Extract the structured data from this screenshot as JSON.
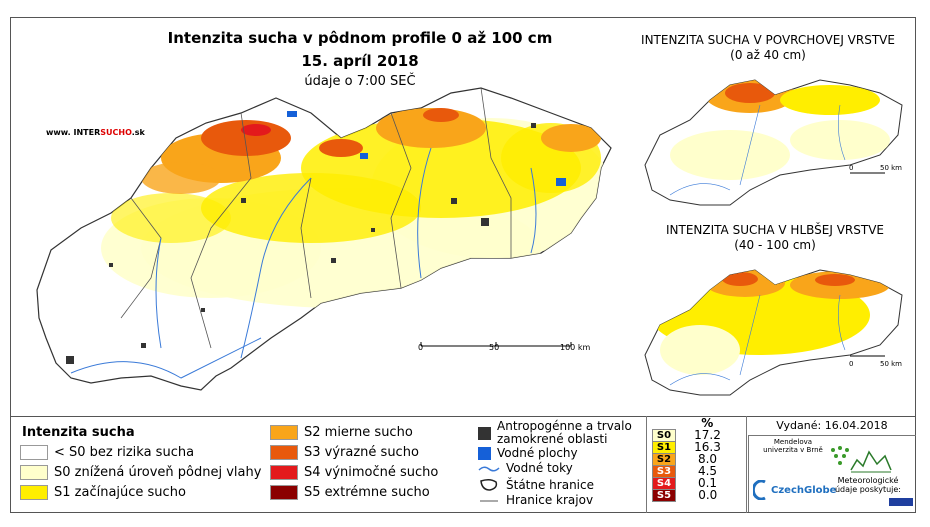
{
  "titles": {
    "main": "Intenzita sucha v pôdnom profile 0 až 100 cm",
    "date": "15. apríl 2018",
    "data_time": "údaje o 7:00 SEČ",
    "inset_surface_line1": "INTENZITA SUCHA V POVRCHOVEJ VRSTVE",
    "inset_surface_line2": "(0 až 40 cm)",
    "inset_deep_line1": "INTENZITA SUCHA V HLBŠEJ VRSTVE",
    "inset_deep_line2": "(40 - 100 cm)"
  },
  "website": {
    "prefix": "www. INTER",
    "highlight": "SUCHO",
    "suffix": ".sk"
  },
  "scale_main": {
    "zero": "0",
    "mid": "50",
    "end": "100 km"
  },
  "scale_inset": {
    "zero": "0",
    "end": "50 km"
  },
  "legend": {
    "title": "Intenzita sucha",
    "classes": [
      {
        "label": "< S0 bez rizika sucha",
        "color": "#ffffff"
      },
      {
        "label": "S0 znížená úroveň pôdnej vlahy",
        "color": "#ffffcc"
      },
      {
        "label": "S1 začínajúce sucho",
        "color": "#ffee00"
      },
      {
        "label": "S2 mierne sucho",
        "color": "#f9a51a"
      },
      {
        "label": "S3 výrazné sucho",
        "color": "#e8590c"
      },
      {
        "label": "S4 výnimočné sucho",
        "color": "#e31a1c"
      },
      {
        "label": "S5 extrémne sucho",
        "color": "#8b0000"
      }
    ],
    "symbols": [
      {
        "label": "Antropogénne a trvalo zamokrené oblasti",
        "icon": "dark-square-icon"
      },
      {
        "label": "Vodné plochy",
        "icon": "blue-square-icon"
      },
      {
        "label": "Vodné toky",
        "icon": "river-line-icon"
      },
      {
        "label": "Štátne hranice",
        "icon": "border-line-icon"
      },
      {
        "label": "Hranice krajov",
        "icon": "region-line-icon"
      }
    ]
  },
  "percent_table": {
    "header": "%",
    "rows": [
      {
        "code": "S0",
        "value": "17.2",
        "color": "#ffffcc"
      },
      {
        "code": "S1",
        "value": "16.3",
        "color": "#ffee00"
      },
      {
        "code": "S2",
        "value": "8.0",
        "color": "#f9a51a"
      },
      {
        "code": "S3",
        "value": "4.5",
        "color": "#e8590c"
      },
      {
        "code": "S4",
        "value": "0.1",
        "color": "#e31a1c"
      },
      {
        "code": "S5",
        "value": "0.0",
        "color": "#8b0000"
      }
    ]
  },
  "issued": "Vydané: 16.04.2018",
  "logos": {
    "mendel": "Mendelova univerzita v Brně",
    "czechglobe": "CzechGlobe",
    "meteo": "Meteorologické údaje poskytuje:"
  }
}
